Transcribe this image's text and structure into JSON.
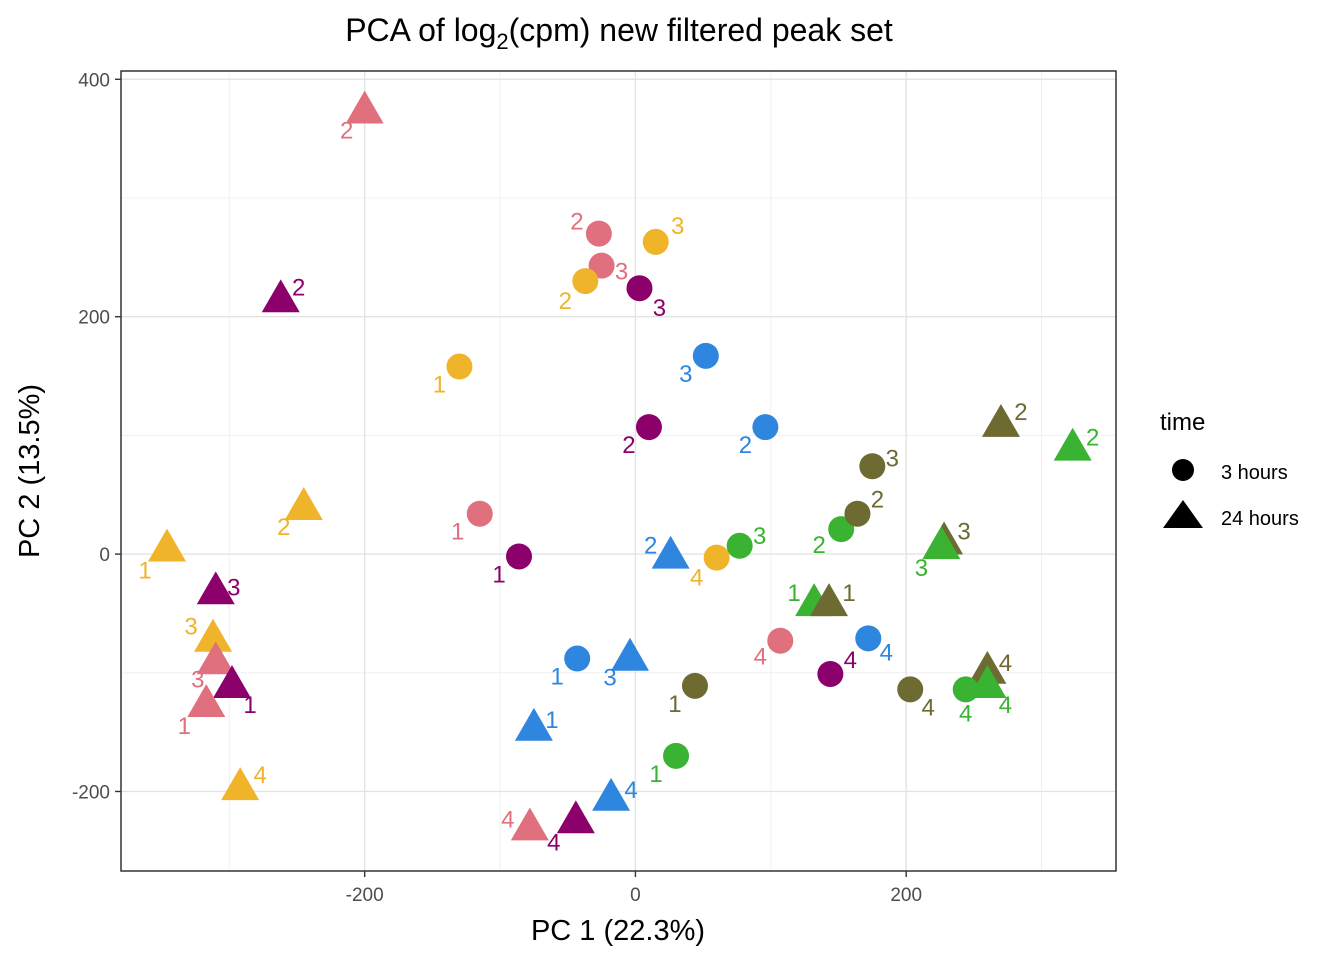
{
  "chart_data": {
    "type": "scatter",
    "title": {
      "prefix": "PCA of log",
      "subscript": "2",
      "suffix": "(cpm) new filtered peak set"
    },
    "xlabel": "PC 1 (22.3%)",
    "ylabel": "PC 2 (13.5%)",
    "xlim": [
      -380,
      355
    ],
    "ylim": [
      -267,
      407
    ],
    "xticks": [
      -200,
      0,
      200
    ],
    "yticks": [
      -200,
      0,
      200,
      400
    ],
    "grid": true,
    "legend": {
      "placement": "right",
      "title": "time",
      "entries": [
        {
          "label": "3 hours",
          "shape": "circle"
        },
        {
          "label": "24 hours",
          "shape": "triangle"
        }
      ]
    },
    "colors": {
      "pink": "#E0707E",
      "gold": "#F0B42A",
      "plum": "#8B006B",
      "blue": "#2F86DE",
      "olive": "#6D6A32",
      "green": "#3AB232"
    },
    "points": [
      {
        "x": -200,
        "y": 372,
        "shape": "triangle",
        "color": "pink",
        "label": "2",
        "lx": -18,
        "ly": 18
      },
      {
        "x": -27,
        "y": 270,
        "shape": "circle",
        "color": "pink",
        "label": "2",
        "lx": -22,
        "ly": -12
      },
      {
        "x": -25,
        "y": 243,
        "shape": "circle",
        "color": "pink",
        "label": "3",
        "lx": 20,
        "ly": 6
      },
      {
        "x": 15,
        "y": 263,
        "shape": "circle",
        "color": "gold",
        "label": "3",
        "lx": 22,
        "ly": -16
      },
      {
        "x": -37,
        "y": 230,
        "shape": "circle",
        "color": "gold",
        "label": "2",
        "lx": -20,
        "ly": 20
      },
      {
        "x": 3,
        "y": 224,
        "shape": "circle",
        "color": "plum",
        "label": "3",
        "lx": 20,
        "ly": 20
      },
      {
        "x": -262,
        "y": 213,
        "shape": "triangle",
        "color": "plum",
        "label": "2",
        "lx": 18,
        "ly": -14
      },
      {
        "x": -130,
        "y": 158,
        "shape": "circle",
        "color": "gold",
        "label": "1",
        "lx": -20,
        "ly": 18
      },
      {
        "x": 52,
        "y": 167,
        "shape": "circle",
        "color": "blue",
        "label": "3",
        "lx": -20,
        "ly": 18
      },
      {
        "x": 10,
        "y": 107,
        "shape": "circle",
        "color": "plum",
        "label": "2",
        "lx": -20,
        "ly": 18
      },
      {
        "x": 96,
        "y": 107,
        "shape": "circle",
        "color": "blue",
        "label": "2",
        "lx": -20,
        "ly": 18
      },
      {
        "x": 175,
        "y": 74,
        "shape": "circle",
        "color": "olive",
        "label": "3",
        "lx": 20,
        "ly": -8
      },
      {
        "x": 270,
        "y": 108,
        "shape": "triangle",
        "color": "olive",
        "label": "2",
        "lx": 20,
        "ly": -14
      },
      {
        "x": 323,
        "y": 88,
        "shape": "triangle",
        "color": "green",
        "label": "2",
        "lx": 20,
        "ly": -12
      },
      {
        "x": -115,
        "y": 34,
        "shape": "circle",
        "color": "pink",
        "label": "1",
        "lx": -22,
        "ly": 18
      },
      {
        "x": -245,
        "y": 38,
        "shape": "triangle",
        "color": "gold",
        "label": "2",
        "lx": -20,
        "ly": 18
      },
      {
        "x": -346,
        "y": 3,
        "shape": "triangle",
        "color": "gold",
        "label": "1",
        "lx": -22,
        "ly": 20
      },
      {
        "x": -86,
        "y": -2,
        "shape": "circle",
        "color": "plum",
        "label": "1",
        "lx": -20,
        "ly": 18
      },
      {
        "x": 26,
        "y": -3,
        "shape": "triangle",
        "color": "blue",
        "label": "2",
        "lx": -20,
        "ly": -12
      },
      {
        "x": 60,
        "y": -3,
        "shape": "circle",
        "color": "gold",
        "label": "4",
        "lx": -20,
        "ly": 20
      },
      {
        "x": 77,
        "y": 7,
        "shape": "circle",
        "color": "green",
        "label": "3",
        "lx": 20,
        "ly": -10
      },
      {
        "x": 152,
        "y": 21,
        "shape": "circle",
        "color": "green",
        "label": "2",
        "lx": -22,
        "ly": 16
      },
      {
        "x": 164,
        "y": 34,
        "shape": "circle",
        "color": "olive",
        "label": "2",
        "lx": 20,
        "ly": -14
      },
      {
        "x": 228,
        "y": 9,
        "shape": "triangle",
        "color": "olive",
        "label": "3",
        "lx": 20,
        "ly": -12
      },
      {
        "x": 226,
        "y": 5,
        "shape": "triangle",
        "color": "green",
        "label": "3",
        "lx": -20,
        "ly": 20
      },
      {
        "x": -310,
        "y": -33,
        "shape": "triangle",
        "color": "plum",
        "label": "3",
        "lx": 18,
        "ly": -6
      },
      {
        "x": -312,
        "y": -73,
        "shape": "triangle",
        "color": "gold",
        "label": "3",
        "lx": -22,
        "ly": -14
      },
      {
        "x": -310,
        "y": -92,
        "shape": "triangle",
        "color": "pink",
        "label": "3",
        "lx": -18,
        "ly": 16
      },
      {
        "x": -298,
        "y": -112,
        "shape": "triangle",
        "color": "plum",
        "label": "1",
        "lx": 18,
        "ly": 18
      },
      {
        "x": -317,
        "y": -128,
        "shape": "triangle",
        "color": "pink",
        "label": "1",
        "lx": -22,
        "ly": 20
      },
      {
        "x": -43,
        "y": -88,
        "shape": "circle",
        "color": "blue",
        "label": "1",
        "lx": -20,
        "ly": 18
      },
      {
        "x": -4,
        "y": -89,
        "shape": "triangle",
        "color": "blue",
        "label": "3",
        "lx": -20,
        "ly": 18
      },
      {
        "x": 107,
        "y": -73,
        "shape": "circle",
        "color": "pink",
        "label": "4",
        "lx": -20,
        "ly": 16
      },
      {
        "x": 172,
        "y": -71,
        "shape": "circle",
        "color": "blue",
        "label": "4",
        "lx": 18,
        "ly": 14
      },
      {
        "x": 144,
        "y": -101,
        "shape": "circle",
        "color": "plum",
        "label": "4",
        "lx": 20,
        "ly": -14
      },
      {
        "x": 132,
        "y": -43,
        "shape": "triangle",
        "color": "green",
        "label": "1",
        "lx": -20,
        "ly": -12
      },
      {
        "x": 143,
        "y": -43,
        "shape": "triangle",
        "color": "olive",
        "label": "1",
        "lx": 20,
        "ly": -12
      },
      {
        "x": 44,
        "y": -111,
        "shape": "circle",
        "color": "olive",
        "label": "1",
        "lx": -20,
        "ly": 18
      },
      {
        "x": 203,
        "y": -114,
        "shape": "circle",
        "color": "olive",
        "label": "4",
        "lx": 18,
        "ly": 18
      },
      {
        "x": 260,
        "y": -100,
        "shape": "triangle",
        "color": "olive",
        "label": "4",
        "lx": 18,
        "ly": -10
      },
      {
        "x": 244,
        "y": -114,
        "shape": "circle",
        "color": "green",
        "label": "4",
        "lx": 0,
        "ly": 24
      },
      {
        "x": 260,
        "y": -112,
        "shape": "triangle",
        "color": "green",
        "label": "4",
        "lx": 18,
        "ly": 18
      },
      {
        "x": -75,
        "y": -148,
        "shape": "triangle",
        "color": "blue",
        "label": "1",
        "lx": 18,
        "ly": -10
      },
      {
        "x": 30,
        "y": -170,
        "shape": "circle",
        "color": "green",
        "label": "1",
        "lx": -20,
        "ly": 18
      },
      {
        "x": -292,
        "y": -198,
        "shape": "triangle",
        "color": "gold",
        "label": "4",
        "lx": 20,
        "ly": -14
      },
      {
        "x": -18,
        "y": -207,
        "shape": "triangle",
        "color": "blue",
        "label": "4",
        "lx": 20,
        "ly": -10
      },
      {
        "x": -78,
        "y": -232,
        "shape": "triangle",
        "color": "pink",
        "label": "4",
        "lx": -22,
        "ly": -10
      },
      {
        "x": -44,
        "y": -226,
        "shape": "triangle",
        "color": "plum",
        "label": "4",
        "lx": -22,
        "ly": 20
      }
    ]
  }
}
